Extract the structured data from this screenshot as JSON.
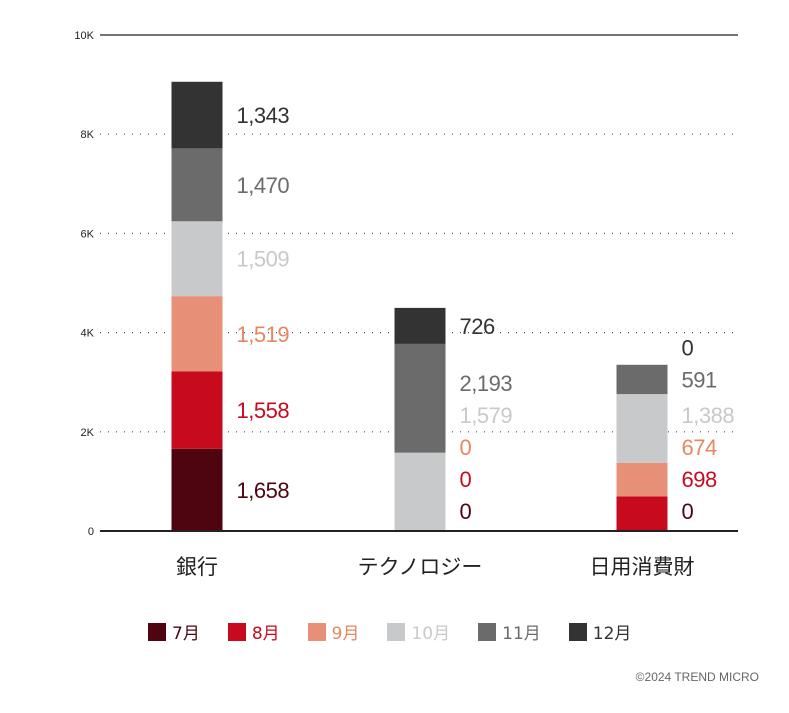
{
  "chart_data": {
    "type": "bar",
    "stacked": true,
    "categories": [
      "銀行",
      "テクノロジー",
      "日用消費財"
    ],
    "series": [
      {
        "name": "7月",
        "values": [
          1658,
          0,
          0
        ],
        "color": "#4e0510",
        "label_color": "#4e0510"
      },
      {
        "name": "8月",
        "values": [
          1558,
          0,
          698
        ],
        "color": "#c80a1e",
        "label_color": "#c80a1e"
      },
      {
        "name": "9月",
        "values": [
          1519,
          0,
          674
        ],
        "color": "#e89077",
        "label_color": "#e8865f"
      },
      {
        "name": "10月",
        "values": [
          1509,
          1579,
          1388
        ],
        "color": "#c8c9ca",
        "label_color": "#c8c9ca"
      },
      {
        "name": "11月",
        "values": [
          1470,
          2193,
          591
        ],
        "color": "#6b6b6b",
        "label_color": "#6b6b6b"
      },
      {
        "name": "12月",
        "values": [
          1343,
          726,
          0
        ],
        "color": "#333333",
        "label_color": "#333333"
      }
    ],
    "data_labels": [
      [
        "1,658",
        "0",
        "0"
      ],
      [
        "1,558",
        "0",
        "698"
      ],
      [
        "1,519",
        "0",
        "674"
      ],
      [
        "1,509",
        "1,579",
        "1,388"
      ],
      [
        "1,470",
        "2,193",
        "591"
      ],
      [
        "1,343",
        "726",
        "0"
      ]
    ],
    "y_ticks": [
      0,
      2000,
      4000,
      6000,
      8000,
      10000
    ],
    "y_tick_labels": [
      "0",
      "2K",
      "4K",
      "6K",
      "8K",
      "10K"
    ],
    "ylim": [
      0,
      10000
    ],
    "grid": true,
    "legend_position": "bottom"
  },
  "copyright": "©2024 TREND MICRO"
}
